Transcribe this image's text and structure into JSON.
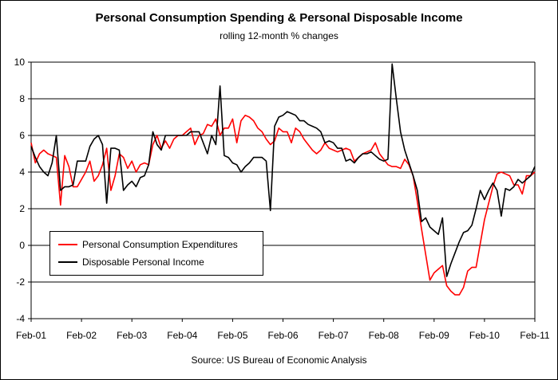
{
  "chart_data": {
    "type": "line",
    "title": "Personal Consumption Spending & Personal Disposable Income",
    "subtitle": "rolling 12-month % changes",
    "source": "Source: US Bureau of Economic Analysis",
    "ylim": [
      -4,
      10
    ],
    "yticks": [
      -4,
      -2,
      0,
      2,
      4,
      6,
      8,
      10
    ],
    "xlim": [
      0,
      120
    ],
    "xticks": [
      {
        "label": "Feb-01",
        "index": 0
      },
      {
        "label": "Feb-02",
        "index": 12
      },
      {
        "label": "Feb-03",
        "index": 24
      },
      {
        "label": "Feb-04",
        "index": 36
      },
      {
        "label": "Feb-05",
        "index": 48
      },
      {
        "label": "Feb-06",
        "index": 60
      },
      {
        "label": "Feb-07",
        "index": 72
      },
      {
        "label": "Feb-08",
        "index": 84
      },
      {
        "label": "Feb-09",
        "index": 96
      },
      {
        "label": "Feb-10",
        "index": 108
      },
      {
        "label": "Feb-11",
        "index": 120
      }
    ],
    "legend_position": "bottom-left",
    "grid": true,
    "series": [
      {
        "name": "Personal Consumption Expenditures",
        "color": "#ff0000",
        "x": [
          0,
          1,
          2,
          3,
          4,
          5,
          6,
          7,
          8,
          9,
          10,
          11,
          12,
          13,
          14,
          15,
          16,
          17,
          18,
          19,
          20,
          21,
          22,
          23,
          24,
          25,
          26,
          27,
          28,
          29,
          30,
          31,
          32,
          33,
          34,
          35,
          36,
          37,
          38,
          39,
          40,
          41,
          42,
          43,
          44,
          45,
          46,
          47,
          48,
          49,
          50,
          51,
          52,
          53,
          54,
          55,
          56,
          57,
          58,
          59,
          60,
          61,
          62,
          63,
          64,
          65,
          66,
          67,
          68,
          69,
          70,
          71,
          72,
          73,
          74,
          75,
          76,
          77,
          78,
          79,
          80,
          81,
          82,
          83,
          84,
          85,
          86,
          87,
          88,
          89,
          90,
          91,
          92,
          93,
          94,
          95,
          96,
          97,
          98,
          99,
          100,
          101,
          102,
          103,
          104,
          105,
          106,
          107,
          108,
          109,
          110,
          111,
          112,
          113,
          114,
          115,
          116,
          117,
          118,
          119,
          120
        ],
        "values": [
          5.6,
          4.5,
          5.0,
          5.2,
          5.0,
          4.9,
          4.8,
          2.2,
          4.9,
          4.3,
          3.2,
          3.2,
          3.6,
          4.0,
          4.6,
          3.5,
          3.8,
          4.4,
          5.3,
          3.0,
          3.8,
          5.0,
          4.8,
          4.2,
          4.6,
          4.0,
          4.4,
          4.5,
          4.4,
          5.5,
          6.0,
          5.3,
          5.7,
          5.3,
          5.8,
          6.0,
          6.0,
          6.2,
          6.4,
          5.5,
          6.0,
          6.1,
          6.6,
          6.5,
          6.9,
          6.0,
          6.4,
          6.4,
          6.9,
          5.6,
          6.8,
          7.1,
          7.0,
          6.8,
          6.4,
          6.2,
          5.8,
          5.5,
          5.7,
          6.4,
          6.2,
          6.2,
          5.6,
          6.4,
          6.2,
          5.8,
          5.5,
          5.2,
          5.0,
          5.2,
          5.6,
          5.3,
          5.2,
          5.1,
          5.2,
          5.3,
          5.2,
          4.6,
          4.8,
          5.0,
          5.1,
          5.2,
          5.6,
          5.0,
          4.7,
          4.4,
          4.3,
          4.3,
          4.2,
          4.7,
          4.4,
          3.8,
          2.4,
          0.9,
          -0.5,
          -1.9,
          -1.5,
          -1.3,
          -1.1,
          -2.2,
          -2.5,
          -2.7,
          -2.7,
          -2.3,
          -1.4,
          -1.2,
          -1.2,
          0.1,
          1.4,
          2.3,
          3.2,
          3.9,
          4.0,
          3.9,
          3.8,
          3.3,
          3.3,
          2.8,
          3.8,
          3.8,
          4.0
        ]
      },
      {
        "name": "Disposable Personal Income",
        "color": "#000000",
        "x": [
          0,
          1,
          2,
          3,
          4,
          5,
          6,
          7,
          8,
          9,
          10,
          11,
          12,
          13,
          14,
          15,
          16,
          17,
          18,
          19,
          20,
          21,
          22,
          23,
          24,
          25,
          26,
          27,
          28,
          29,
          30,
          31,
          32,
          33,
          34,
          35,
          36,
          37,
          38,
          39,
          40,
          41,
          42,
          43,
          44,
          45,
          46,
          47,
          48,
          49,
          50,
          51,
          52,
          53,
          54,
          55,
          56,
          57,
          58,
          59,
          60,
          61,
          62,
          63,
          64,
          65,
          66,
          67,
          68,
          69,
          70,
          71,
          72,
          73,
          74,
          75,
          76,
          77,
          78,
          79,
          80,
          81,
          82,
          83,
          84,
          85,
          86,
          87,
          88,
          89,
          90,
          91,
          92,
          93,
          94,
          95,
          96,
          97,
          98,
          99,
          100,
          101,
          102,
          103,
          104,
          105,
          106,
          107,
          108,
          109,
          110,
          111,
          112,
          113,
          114,
          115,
          116,
          117,
          118,
          119,
          120
        ],
        "values": [
          5.4,
          4.8,
          4.3,
          4.0,
          3.8,
          4.5,
          6.0,
          3.0,
          3.2,
          3.2,
          3.3,
          4.6,
          4.6,
          4.6,
          5.4,
          5.8,
          6.0,
          5.5,
          2.3,
          5.3,
          5.3,
          5.2,
          3.0,
          3.3,
          3.5,
          3.2,
          3.7,
          3.8,
          4.4,
          6.2,
          5.5,
          5.2,
          6.0,
          6.0,
          6.0,
          6.0,
          6.0,
          6.0,
          6.2,
          6.2,
          6.2,
          5.6,
          5.0,
          6.0,
          5.5,
          8.7,
          4.9,
          4.8,
          4.5,
          4.4,
          4.0,
          4.3,
          4.5,
          4.8,
          4.8,
          4.8,
          4.6,
          1.9,
          6.5,
          7.0,
          7.1,
          7.3,
          7.2,
          7.1,
          6.8,
          6.8,
          6.6,
          6.5,
          6.4,
          6.2,
          5.6,
          5.7,
          5.6,
          5.3,
          5.3,
          4.6,
          4.7,
          4.5,
          4.8,
          5.0,
          5.0,
          5.1,
          4.9,
          4.7,
          4.6,
          4.7,
          9.9,
          8.0,
          6.2,
          5.2,
          4.5,
          3.8,
          3.0,
          1.3,
          1.5,
          1.0,
          0.8,
          0.6,
          1.5,
          -1.7,
          -1.0,
          -0.4,
          0.2,
          0.7,
          0.8,
          1.1,
          2.0,
          3.0,
          2.5,
          3.0,
          3.4,
          3.0,
          1.6,
          3.1,
          3.0,
          3.2,
          3.6,
          3.4,
          3.6,
          3.8,
          4.3
        ]
      }
    ]
  }
}
